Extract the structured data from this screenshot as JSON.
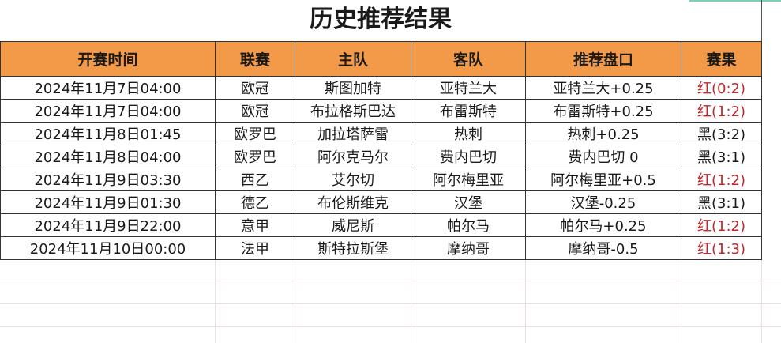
{
  "title": "历史推荐结果",
  "columns": [
    "开赛时间",
    "联赛",
    "主队",
    "客队",
    "推荐盘口",
    "赛果"
  ],
  "rows": [
    [
      "2024年11月7日04:00",
      "欧冠",
      "斯图加特",
      "亚特兰大",
      "亚特兰大+0.25",
      "红(0:2)"
    ],
    [
      "2024年11月7日04:00",
      "欧冠",
      "布拉格斯巴达",
      "布雷斯特",
      "布雷斯特+0.25",
      "红(1:2)"
    ],
    [
      "2024年11月8日01:45",
      "欧罗巴",
      "加拉塔萨雷",
      "热刺",
      "热刺+0.25",
      "黑(3:2)"
    ],
    [
      "2024年11月8日04:00",
      "欧罗巴",
      "阿尔克马尔",
      "费内巴切",
      "费内巴切 0",
      "黑(3:1)"
    ],
    [
      "2024年11月9日03:30",
      "西乙",
      "艾尔切",
      "阿尔梅里亚",
      "阿尔梅里亚+0.5",
      "红(1:2)"
    ],
    [
      "2024年11月9日01:30",
      "德乙",
      "布伦斯维克",
      "汉堡",
      "汉堡-0.25",
      "黑(3:1)"
    ],
    [
      "2024年11月9日22:00",
      "意甲",
      "威尼斯",
      "帕尔马",
      "帕尔马+0.25",
      "红(1:2)"
    ],
    [
      "2024年11月10日00:00",
      "法甲",
      "斯特拉斯堡",
      "摩纳哥",
      "摩纳哥-0.5",
      "红(1:3)"
    ]
  ],
  "colors": {
    "header": "#f39a48",
    "win": "#c0282c",
    "loss": "#1a1a1a"
  }
}
